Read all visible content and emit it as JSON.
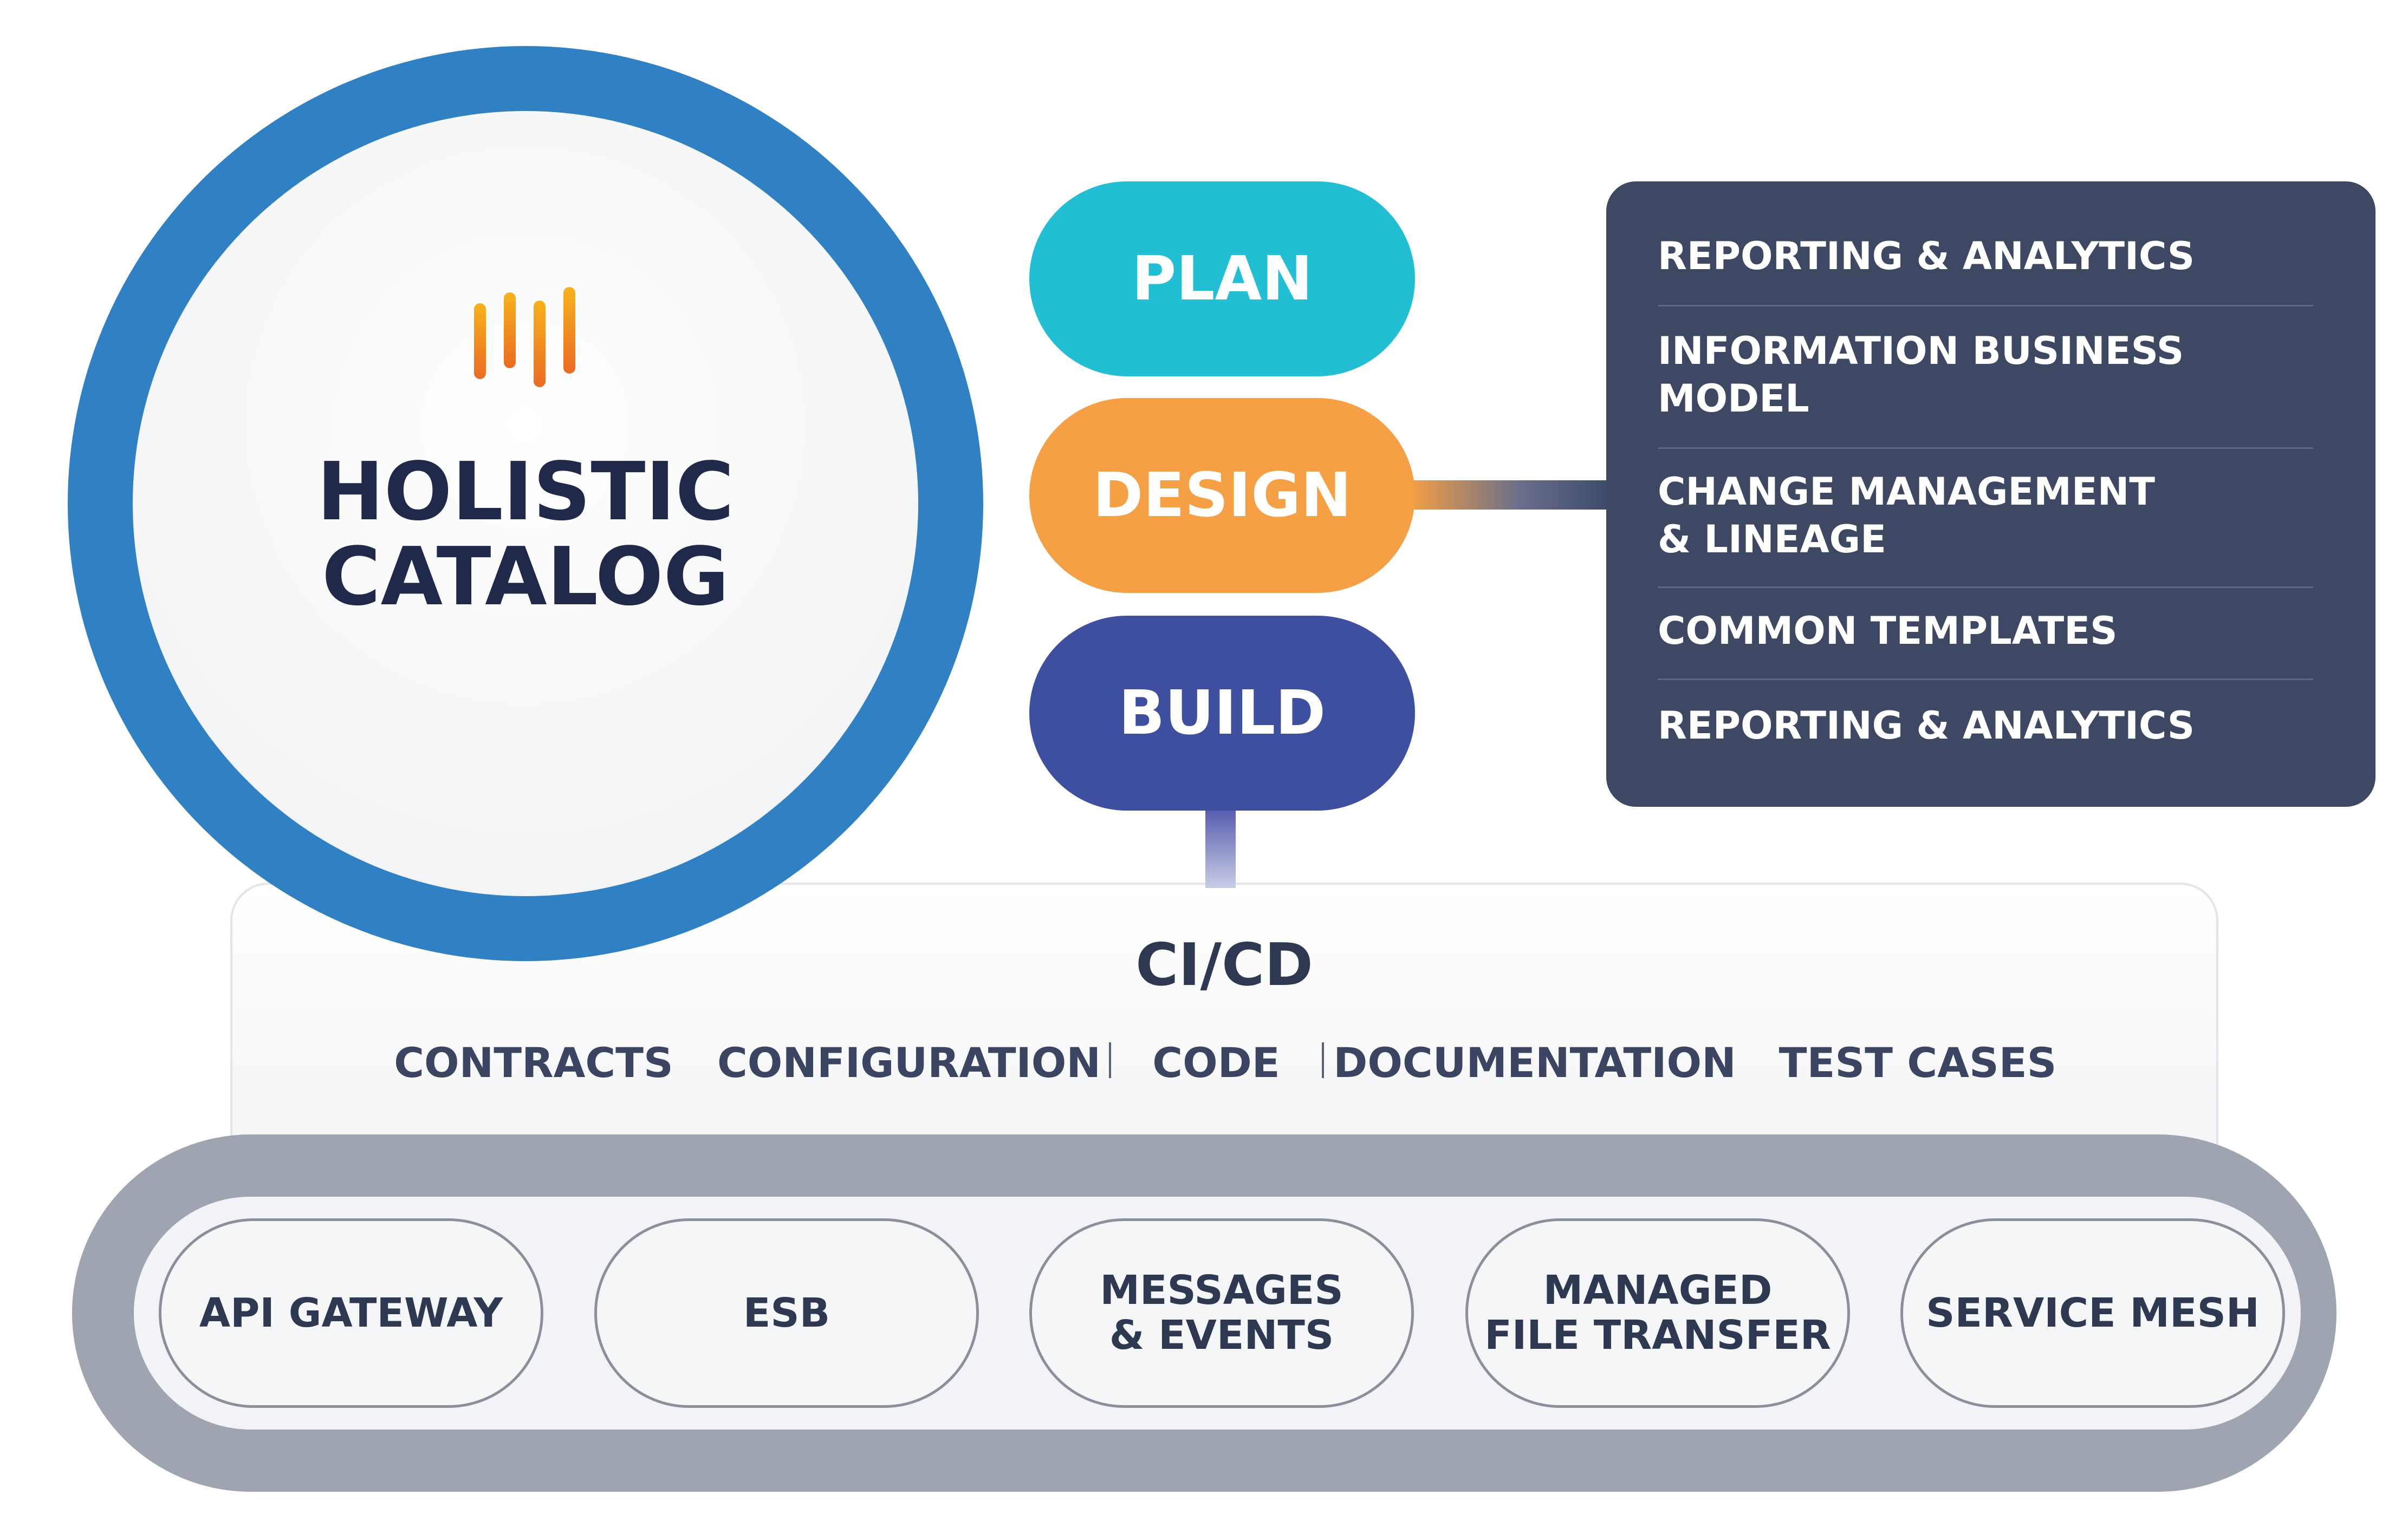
{
  "catalog": {
    "title": "HOLISTIC\nCATALOG",
    "ring_color": "#3080c4",
    "logo_colors": [
      "#f7b21b",
      "#ec6a23"
    ]
  },
  "phases": [
    {
      "label": "PLAN",
      "color": "#22bfd4"
    },
    {
      "label": "DESIGN",
      "color": "#f5a044"
    },
    {
      "label": "BUILD",
      "color": "#3e4fa0"
    }
  ],
  "design_details": [
    "REPORTING & ANALYTICS",
    "INFORMATION BUSINESS\nMODEL",
    "CHANGE MANAGEMENT\n& LINEAGE",
    "COMMON TEMPLATES",
    "REPORTING & ANALYTICS"
  ],
  "cicd": {
    "title": "CI/CD",
    "items": [
      "CONTRACTS",
      "CONFIGURATION",
      "CODE",
      "DOCUMENTATION",
      "TEST CASES"
    ]
  },
  "platforms": [
    "API GATEWAY",
    "ESB",
    "MESSAGES\n& EVENTS",
    "MANAGED\nFILE TRANSFER",
    "SERVICE MESH"
  ]
}
